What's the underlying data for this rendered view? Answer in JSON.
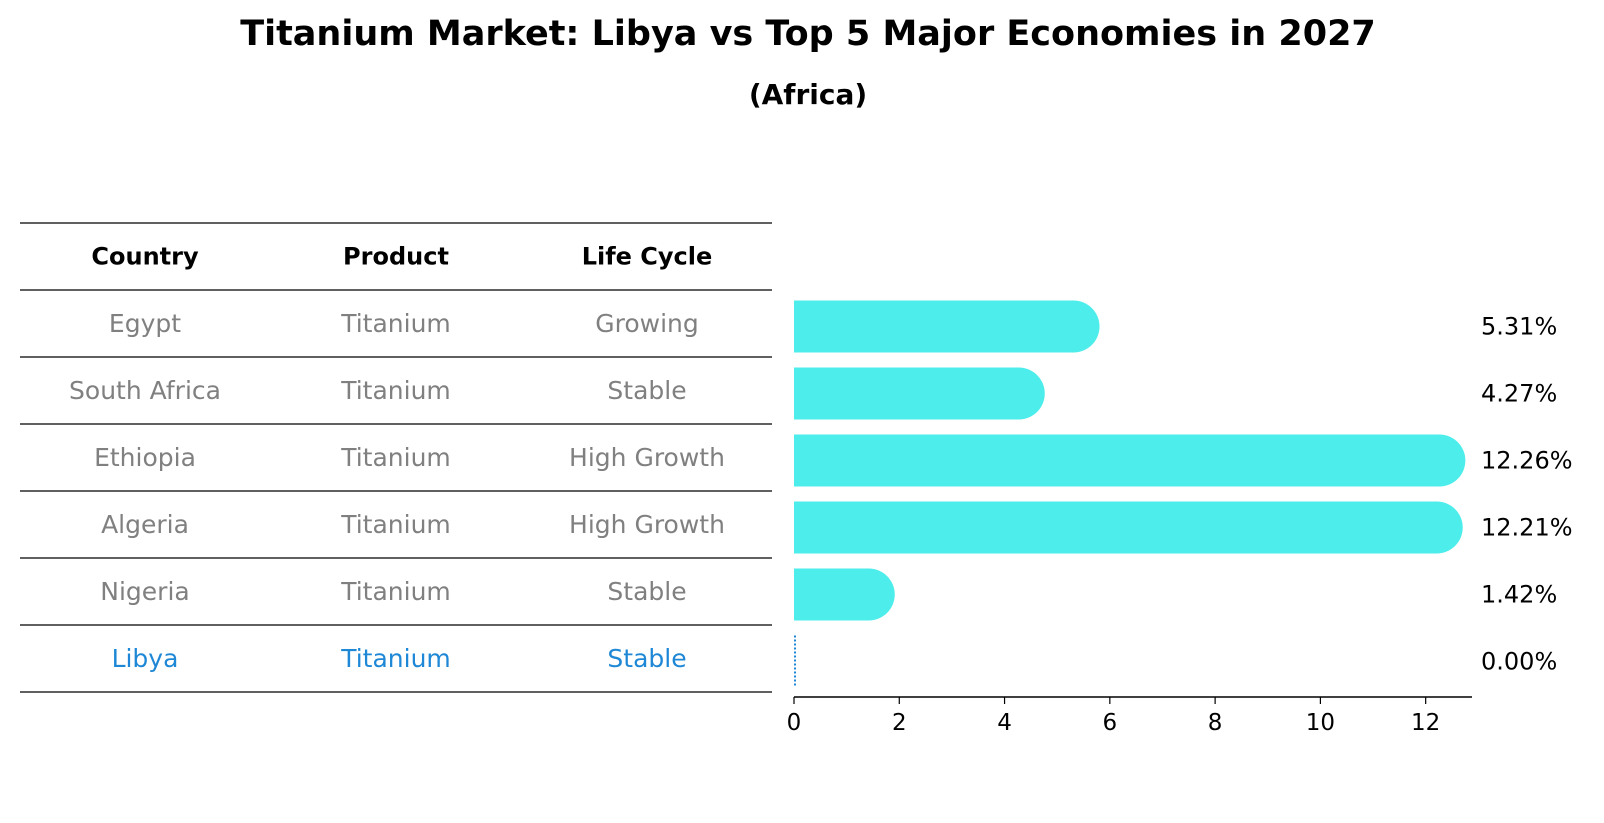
{
  "chart_data": {
    "type": "table",
    "title": "Titanium Market: Libya vs Top 5 Major Economies in 2027",
    "subtitle": "(Africa)",
    "columns": [
      "Country",
      "Product",
      "Life Cycle"
    ],
    "rows": [
      {
        "country": "Egypt",
        "product": "Titanium",
        "life_cycle": "Growing",
        "value": 5.31,
        "label": "5.31%",
        "highlight": false
      },
      {
        "country": "South Africa",
        "product": "Titanium",
        "life_cycle": "Stable",
        "value": 4.27,
        "label": "4.27%",
        "highlight": false
      },
      {
        "country": "Ethiopia",
        "product": "Titanium",
        "life_cycle": "High Growth",
        "value": 12.26,
        "label": "12.26%",
        "highlight": false
      },
      {
        "country": "Algeria",
        "product": "Titanium",
        "life_cycle": "High Growth",
        "value": 12.21,
        "label": "12.21%",
        "highlight": false
      },
      {
        "country": "Nigeria",
        "product": "Titanium",
        "life_cycle": "Stable",
        "value": 1.42,
        "label": "1.42%",
        "highlight": false
      },
      {
        "country": "Libya",
        "product": "Titanium",
        "life_cycle": "Stable",
        "value": 0.0,
        "label": "0.00%",
        "highlight": true
      }
    ],
    "xticks": [
      0,
      2,
      4,
      6,
      8,
      10,
      12
    ],
    "xlim": [
      0,
      12.88
    ],
    "bar_color": "#4DEDEB",
    "highlight_color": "#1F88D6",
    "row_text_color": "#808080",
    "header_color": "#000000"
  }
}
